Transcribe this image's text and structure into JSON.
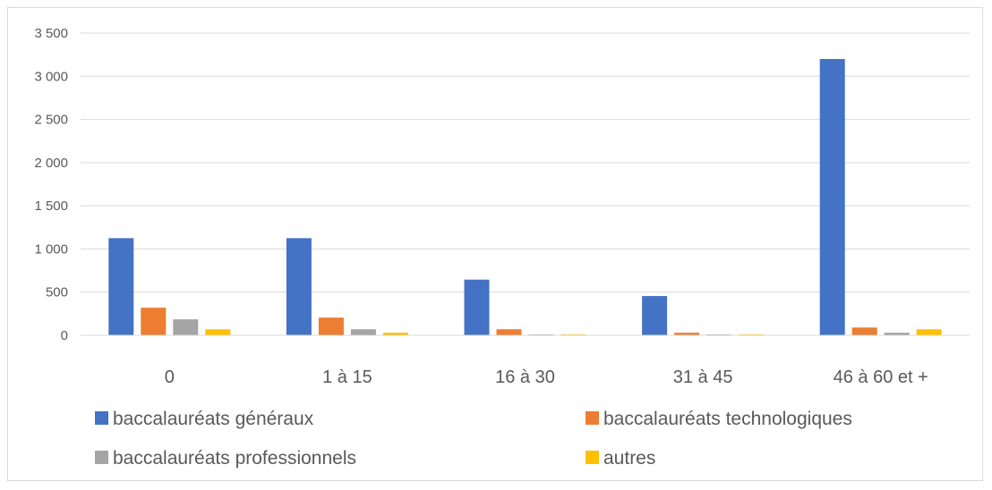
{
  "chart_data": {
    "type": "bar",
    "title": "",
    "xlabel": "",
    "ylabel": "",
    "categories": [
      "0",
      "1 à 15",
      "16 à 30",
      "31 à 45",
      "46 à 60 et +"
    ],
    "ylim": [
      0,
      3500
    ],
    "yticks": [
      0,
      500,
      1000,
      1500,
      2000,
      2500,
      3000,
      3500
    ],
    "ytick_labels": [
      "0",
      "500",
      "1 000",
      "1 500",
      "2 000",
      "2 500",
      "3 000",
      "3 500"
    ],
    "grid": true,
    "legend_position": "bottom",
    "series": [
      {
        "name": "baccalauréats généraux",
        "color": "#4472c4",
        "values": [
          1125,
          1125,
          645,
          455,
          3200
        ]
      },
      {
        "name": "baccalauréats technologiques",
        "color": "#ed7d31",
        "values": [
          320,
          205,
          70,
          30,
          90
        ]
      },
      {
        "name": "baccalauréats professionnels",
        "color": "#a5a5a5",
        "values": [
          185,
          70,
          10,
          10,
          30
        ]
      },
      {
        "name": "autres",
        "color": "#ffc000",
        "values": [
          70,
          30,
          10,
          10,
          70
        ]
      }
    ]
  }
}
